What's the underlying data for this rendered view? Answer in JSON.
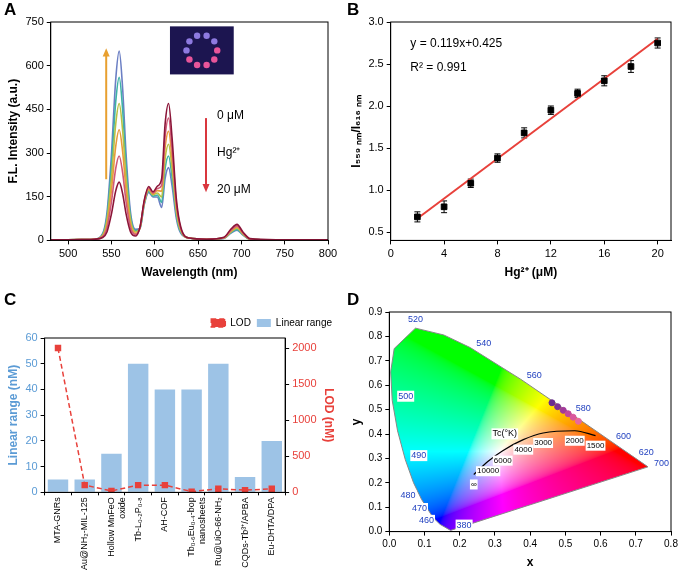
{
  "chart_data": [
    {
      "type": "line",
      "panel_label": "A",
      "x_label": "Wavelength (nm)",
      "y_label": "F.L. Intensity (a.u.)",
      "annotations": [
        "0 μM",
        "Hg²⁺",
        "20 μM"
      ],
      "x": [
        480,
        500,
        520,
        530,
        540,
        545,
        550,
        555,
        559,
        563,
        567,
        572,
        578,
        583,
        588,
        593,
        598,
        603,
        608,
        612,
        616,
        620,
        625,
        630,
        640,
        660,
        680,
        688,
        695,
        702,
        710,
        740,
        770,
        800
      ],
      "series": [
        {
          "color": "#8b1538",
          "values": [
            2,
            2,
            3,
            4,
            10,
            30,
            90,
            170,
            200,
            160,
            90,
            30,
            15,
            46,
            139,
            185,
            167,
            186,
            212,
            400,
            470,
            353,
            141,
            47,
            8,
            4,
            11,
            39,
            55,
            28,
            6,
            2,
            2,
            2
          ]
        },
        {
          "color": "#d05a78",
          "values": [
            2,
            2,
            3,
            4,
            13,
            44,
            131,
            247,
            290,
            232,
            131,
            44,
            20,
            45,
            136,
            181,
            163,
            178,
            189,
            357,
            420,
            315,
            126,
            42,
            8,
            4,
            10,
            35,
            50,
            25,
            5,
            2,
            2,
            2
          ]
        },
        {
          "color": "#e89a3c",
          "values": [
            2,
            2,
            3,
            4,
            15,
            57,
            171,
            323,
            380,
            304,
            171,
            57,
            24,
            44,
            133,
            177,
            159,
            171,
            169,
            319,
            375,
            281,
            113,
            38,
            8,
            4,
            9,
            32,
            46,
            23,
            5,
            2,
            2,
            2
          ]
        },
        {
          "color": "#b9c244",
          "values": [
            2,
            2,
            3,
            4,
            18,
            71,
            212,
            400,
            470,
            376,
            212,
            71,
            29,
            43,
            130,
            173,
            156,
            163,
            149,
            281,
            330,
            248,
            99,
            33,
            8,
            4,
            8,
            29,
            42,
            21,
            4,
            2,
            2,
            2
          ]
        },
        {
          "color": "#3fb3a5",
          "values": [
            2,
            2,
            3,
            4,
            21,
            84,
            252,
            476,
            560,
            448,
            252,
            84,
            33,
            42,
            127,
            169,
            152,
            156,
            131,
            247,
            290,
            218,
            87,
            29,
            8,
            4,
            8,
            27,
            38,
            19,
            4,
            2,
            2,
            2
          ]
        },
        {
          "color": "#6b7fc4",
          "values": [
            2,
            2,
            3,
            4,
            24,
            98,
            293,
            553,
            650,
            520,
            293,
            98,
            38,
            41,
            124,
            165,
            149,
            149,
            113,
            213,
            250,
            188,
            75,
            25,
            8,
            4,
            7,
            25,
            35,
            18,
            4,
            2,
            2,
            2
          ]
        }
      ],
      "xlim": [
        480,
        800
      ],
      "xticks": [
        500,
        550,
        600,
        650,
        700,
        750,
        800
      ],
      "ylim": [
        0,
        750
      ],
      "yticks": [
        0,
        150,
        300,
        450,
        600,
        750
      ],
      "grid": false
    },
    {
      "type": "scatter",
      "panel_label": "B",
      "x_label": "Hg²⁺ (μM)",
      "y_label": "I₅₅₉ ₙₘ/I₆₁₆ ₙₘ",
      "annotations": [
        "y = 0.119x+0.425",
        "R² = 0.991"
      ],
      "series": [
        {
          "type": "scatter",
          "color": "#000000",
          "marker": "square",
          "x": [
            2,
            4,
            6,
            8,
            10,
            12,
            14,
            16,
            18,
            20
          ],
          "values": [
            0.68,
            0.8,
            1.08,
            1.38,
            1.68,
            1.95,
            2.15,
            2.3,
            2.47,
            2.75
          ],
          "errors": [
            0.06,
            0.07,
            0.05,
            0.05,
            0.06,
            0.05,
            0.05,
            0.06,
            0.07,
            0.06
          ]
        },
        {
          "type": "line",
          "color": "#e8413b",
          "x": [
            2,
            20
          ],
          "values": [
            0.66,
            2.8
          ]
        }
      ],
      "xlim": [
        0,
        21
      ],
      "xticks": [
        0,
        4,
        8,
        12,
        16,
        20
      ],
      "ylim": [
        0.4,
        3.0
      ],
      "yticks": [
        0.5,
        {
          "value": 1,
          "label": "1.0"
        },
        1.5,
        {
          "value": 2,
          "label": "2.0"
        },
        2.5,
        {
          "value": 3,
          "label": "3.0"
        }
      ],
      "grid": false
    },
    {
      "type": "bar",
      "panel_label": "C",
      "y_label": "Linear range (nM)",
      "y2_label": "LOD (nM)",
      "categories": [
        "MTA-GNRs",
        "Au@NH₂-MIL-125",
        "Hollow MnFeO oxide",
        "Tb-L₀.₂P₀.₈",
        "AH-COF",
        "Tb₀.₆Eu₀.₄-bop nanosheets",
        "Ru@UiO-66-NH₂",
        "CQDs-Tb³⁺/APBA",
        "Eu-DHTA/DPA"
      ],
      "series": [
        {
          "name": "Linear range",
          "type": "bar",
          "color": "#9dc3e6",
          "values": [
            5,
            5,
            15,
            50,
            40,
            40,
            50,
            6,
            20
          ]
        },
        {
          "name": "LOD",
          "type": "line",
          "axis": "y2",
          "color": "#e8413b",
          "marker": "square",
          "line_style": "dashed",
          "values": [
            2000,
            100,
            20,
            100,
            100,
            10,
            50,
            30,
            50
          ]
        }
      ],
      "ylim": [
        0,
        60
      ],
      "yticks": [
        0,
        10,
        20,
        30,
        40,
        50,
        60
      ],
      "y2lim": [
        0,
        2140
      ],
      "y2ticks": [
        0,
        500,
        1000,
        1500,
        2000
      ],
      "legend": "top right",
      "grid": false
    },
    {
      "type": "scatter",
      "panel_label": "D",
      "x_label": "x",
      "y_label": "y",
      "locus": {
        "x": [
          0.1741,
          0.144,
          0.1241,
          0.0913,
          0.0687,
          0.0454,
          0.0235,
          0.0082,
          0.0039,
          0.0139,
          0.0743,
          0.1547,
          0.2296,
          0.3731,
          0.5125,
          0.627,
          0.6915,
          0.7347
        ],
        "y": [
          0.005,
          0.0297,
          0.0578,
          0.1327,
          0.2007,
          0.295,
          0.4127,
          0.5384,
          0.6548,
          0.7502,
          0.8338,
          0.8059,
          0.7543,
          0.6245,
          0.4866,
          0.3725,
          0.3083,
          0.2653
        ],
        "labels": [
          380,
          460,
          470,
          480,
          null,
          490,
          null,
          500,
          null,
          null,
          520,
          null,
          540,
          560,
          580,
          600,
          620,
          700
        ]
      },
      "planckian": {
        "title": "Tc(°K)",
        "x": [
          0.2399,
          0.2807,
          0.3221,
          0.3805,
          0.4369,
          0.5267,
          0.5857
        ],
        "y": [
          0.2341,
          0.2884,
          0.3318,
          0.3768,
          0.4041,
          0.4133,
          0.3931
        ],
        "labels": [
          "∞",
          10000,
          6000,
          4000,
          3000,
          2000,
          1500
        ]
      },
      "series": [
        {
          "type": "scatter",
          "marker": "circle",
          "colors": [
            "#6a2c91",
            "#7e3296",
            "#a13a9a",
            "#c2479b",
            "#d9579d",
            "#e8679e"
          ],
          "x": [
            0.462,
            0.478,
            0.494,
            0.508,
            0.522,
            0.537
          ],
          "values": [
            0.528,
            0.512,
            0.497,
            0.483,
            0.469,
            0.452
          ]
        }
      ],
      "xlim": [
        0,
        0.8
      ],
      "xticks": [
        {
          "value": 0,
          "label": "0.0"
        },
        0.1,
        0.2,
        0.3,
        0.4,
        0.5,
        0.6,
        0.7,
        0.8
      ],
      "ylim": [
        0,
        0.9
      ],
      "yticks": [
        {
          "value": 0,
          "label": "0.0"
        },
        0.1,
        0.2,
        0.3,
        0.4,
        0.5,
        0.6,
        0.7,
        0.8,
        0.9
      ],
      "grid": false
    }
  ]
}
